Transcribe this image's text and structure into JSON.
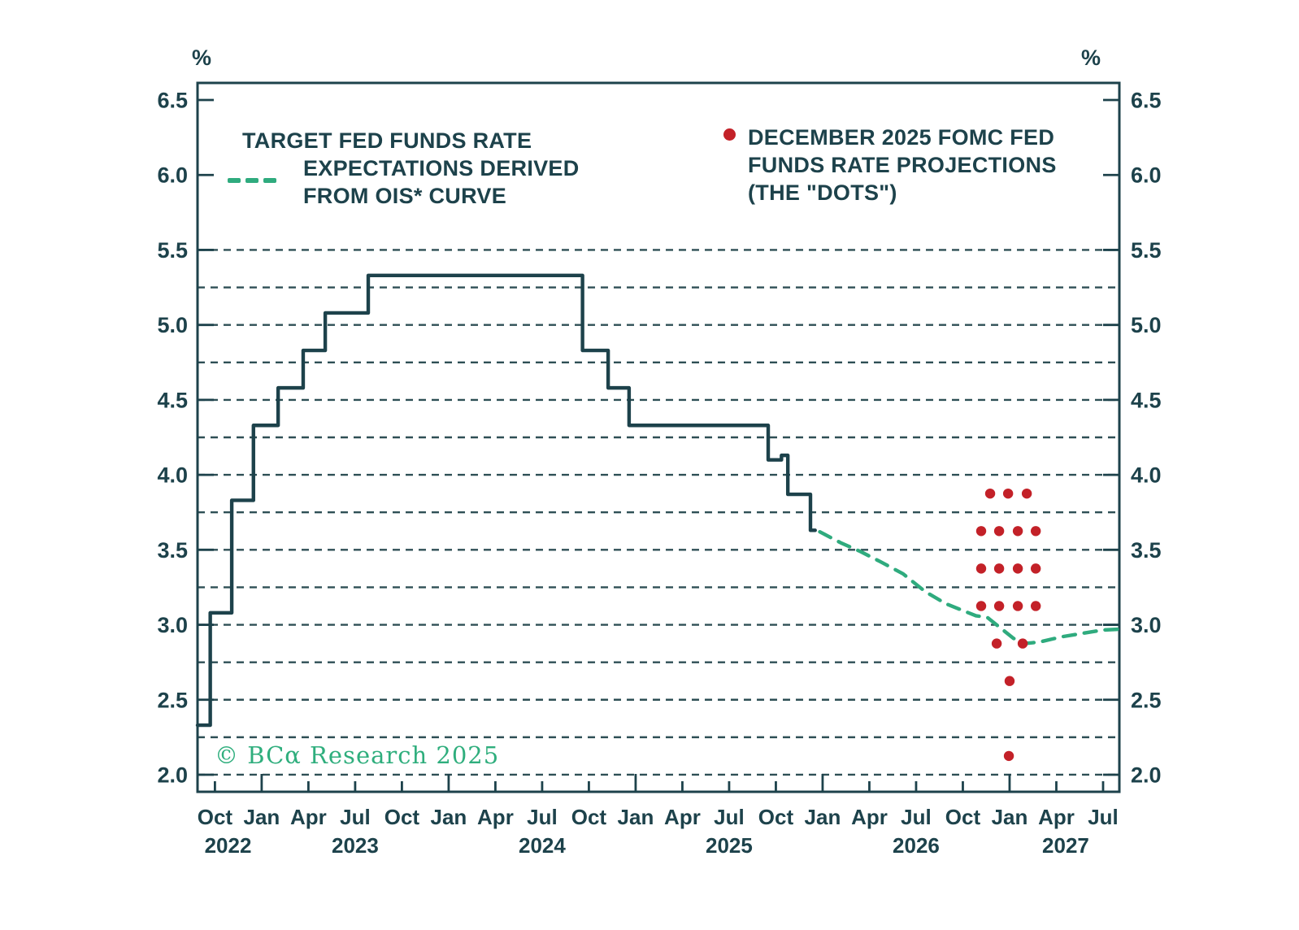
{
  "units": {
    "left": "%",
    "right": "%"
  },
  "legend_ois": {
    "line1": "TARGET FED FUNDS RATE",
    "line2": "EXPECTATIONS DERIVED",
    "line3": "FROM OIS* CURVE"
  },
  "legend_dots": {
    "line1": "DECEMBER 2025 FOMC FED",
    "line2": "FUNDS RATE PROJECTIONS",
    "line3": "(THE \"DOTS\")"
  },
  "watermark": "© BCα Research 2025",
  "colors": {
    "ink": "#1d424b",
    "grid": "#2e4f55",
    "green": "#2fab7e",
    "red": "#c32128",
    "watermark_green": "#2fae7d"
  },
  "chart_data": {
    "type": "line",
    "title": "",
    "ylabel": "%",
    "x_domain": [
      2022.657,
      2027.587
    ],
    "y_domain": [
      1.886,
      6.614
    ],
    "y_ticks": [
      2.0,
      2.5,
      3.0,
      3.5,
      4.0,
      4.5,
      5.0,
      5.5,
      6.0,
      6.5
    ],
    "y_gridlines": [
      2.0,
      2.25,
      2.5,
      2.75,
      3.0,
      3.25,
      3.5,
      3.75,
      4.0,
      4.25,
      4.5,
      4.75,
      5.0,
      5.25,
      5.5
    ],
    "x_ticks": [
      {
        "t": 2022.75,
        "label": "Oct",
        "major": false
      },
      {
        "t": 2023.0,
        "label": "Jan",
        "major": true
      },
      {
        "t": 2023.25,
        "label": "Apr",
        "major": false
      },
      {
        "t": 2023.5,
        "label": "Jul",
        "major": false
      },
      {
        "t": 2023.75,
        "label": "Oct",
        "major": false
      },
      {
        "t": 2024.0,
        "label": "Jan",
        "major": true
      },
      {
        "t": 2024.25,
        "label": "Apr",
        "major": false
      },
      {
        "t": 2024.5,
        "label": "Jul",
        "major": false
      },
      {
        "t": 2024.75,
        "label": "Oct",
        "major": false
      },
      {
        "t": 2025.0,
        "label": "Jan",
        "major": true
      },
      {
        "t": 2025.25,
        "label": "Apr",
        "major": false
      },
      {
        "t": 2025.5,
        "label": "Jul",
        "major": false
      },
      {
        "t": 2025.75,
        "label": "Oct",
        "major": false
      },
      {
        "t": 2026.0,
        "label": "Jan",
        "major": true
      },
      {
        "t": 2026.25,
        "label": "Apr",
        "major": false
      },
      {
        "t": 2026.5,
        "label": "Jul",
        "major": false
      },
      {
        "t": 2026.75,
        "label": "Oct",
        "major": false
      },
      {
        "t": 2027.0,
        "label": "Jan",
        "major": true
      },
      {
        "t": 2027.25,
        "label": "Apr",
        "major": false
      },
      {
        "t": 2027.5,
        "label": "Jul",
        "major": false
      }
    ],
    "year_labels": [
      {
        "t": 2022.82,
        "label": "2022"
      },
      {
        "t": 2023.5,
        "label": "2023"
      },
      {
        "t": 2024.5,
        "label": "2024"
      },
      {
        "t": 2025.5,
        "label": "2025"
      },
      {
        "t": 2026.5,
        "label": "2026"
      },
      {
        "t": 2027.3,
        "label": "2027"
      }
    ],
    "series": [
      {
        "name": "target-fed-funds-rate",
        "style": "step-solid",
        "points": [
          [
            2022.657,
            2.33
          ],
          [
            2022.725,
            3.08
          ],
          [
            2022.84,
            3.83
          ],
          [
            2022.956,
            4.33
          ],
          [
            2023.088,
            4.58
          ],
          [
            2023.222,
            4.83
          ],
          [
            2023.34,
            5.08
          ],
          [
            2023.57,
            5.33
          ],
          [
            2024.716,
            4.83
          ],
          [
            2024.853,
            4.58
          ],
          [
            2024.965,
            4.33
          ],
          [
            2025.709,
            4.1
          ],
          [
            2025.78,
            4.13
          ],
          [
            2025.814,
            3.87
          ],
          [
            2025.935,
            3.63
          ],
          [
            2025.96,
            3.63
          ]
        ]
      },
      {
        "name": "ois-curve-expectations",
        "style": "dashed-line",
        "points": [
          [
            2025.985,
            3.62
          ],
          [
            2026.1,
            3.545
          ],
          [
            2026.2,
            3.49
          ],
          [
            2026.31,
            3.42
          ],
          [
            2026.43,
            3.34
          ],
          [
            2026.55,
            3.22
          ],
          [
            2026.66,
            3.14
          ],
          [
            2026.74,
            3.1
          ],
          [
            2026.82,
            3.06
          ],
          [
            2026.88,
            3.05
          ],
          [
            2026.95,
            2.98
          ],
          [
            2027.02,
            2.91
          ],
          [
            2027.08,
            2.875
          ],
          [
            2027.16,
            2.885
          ],
          [
            2027.28,
            2.92
          ],
          [
            2027.4,
            2.945
          ],
          [
            2027.5,
            2.965
          ],
          [
            2027.58,
            2.97
          ]
        ]
      },
      {
        "name": "fomc-december-2025-dots",
        "style": "scatter",
        "dot_groups": [
          {
            "value": 3.875,
            "times": [
              2026.896,
              2026.992,
              2027.092
            ]
          },
          {
            "value": 3.625,
            "times": [
              2026.848,
              2026.944,
              2027.044,
              2027.14
            ]
          },
          {
            "value": 3.375,
            "times": [
              2026.848,
              2026.944,
              2027.044,
              2027.14
            ]
          },
          {
            "value": 3.125,
            "times": [
              2026.848,
              2026.944,
              2027.044,
              2027.14
            ]
          },
          {
            "value": 2.875,
            "times": [
              2026.931,
              2027.07
            ]
          },
          {
            "value": 2.625,
            "times": [
              2027.0
            ]
          },
          {
            "value": 2.125,
            "times": [
              2026.996
            ]
          }
        ]
      }
    ]
  }
}
